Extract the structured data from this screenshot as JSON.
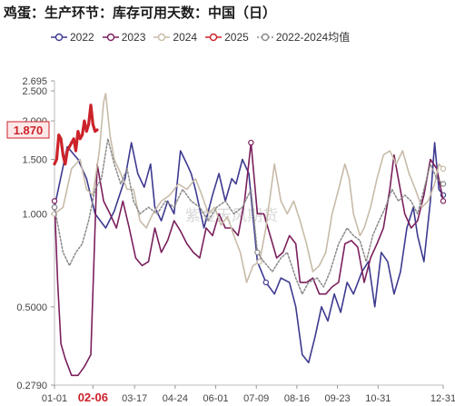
{
  "chart_data": {
    "type": "line",
    "title": "鸡蛋：生产环节：库存可用天数：中国（日）",
    "watermark": "紫金天风期货",
    "y_scale": "log",
    "ylim": [
      0.279,
      2.695
    ],
    "y_ticks": [
      "2.695",
      "2.500",
      "2.000",
      "1.500",
      "1.000",
      "0.5000",
      "0.2790"
    ],
    "x_ticks": [
      "01-01",
      "02-06",
      "03-17",
      "04-24",
      "06-01",
      "07-09",
      "08-16",
      "09-23",
      "10-31",
      "12-31"
    ],
    "x_tick_days": [
      0,
      36,
      75,
      113,
      151,
      189,
      227,
      265,
      303,
      364
    ],
    "highlight_x_tick": "02-06",
    "latest_value_label": "1.870",
    "series": [
      {
        "name": "2022",
        "color": "#3d3a8f",
        "width": 1.6,
        "points": [
          [
            0,
            1.05
          ],
          [
            12,
            1.65
          ],
          [
            22,
            1.5
          ],
          [
            30,
            1.3
          ],
          [
            38,
            1.0
          ],
          [
            48,
            0.9
          ],
          [
            56,
            1.02
          ],
          [
            66,
            1.3
          ],
          [
            72,
            1.7
          ],
          [
            78,
            1.35
          ],
          [
            84,
            1.22
          ],
          [
            90,
            1.45
          ],
          [
            94,
            1.05
          ],
          [
            100,
            0.95
          ],
          [
            106,
            1.1
          ],
          [
            112,
            1.0
          ],
          [
            118,
            1.6
          ],
          [
            124,
            1.45
          ],
          [
            128,
            1.35
          ],
          [
            132,
            1.2
          ],
          [
            140,
            0.9
          ],
          [
            148,
            1.15
          ],
          [
            154,
            1.35
          ],
          [
            160,
            1.1
          ],
          [
            166,
            1.3
          ],
          [
            170,
            1.25
          ],
          [
            176,
            1.5
          ],
          [
            182,
            1.35
          ],
          [
            190,
            0.7
          ],
          [
            198,
            0.6
          ],
          [
            206,
            0.55
          ],
          [
            212,
            0.62
          ],
          [
            220,
            0.6
          ],
          [
            226,
            0.5
          ],
          [
            232,
            0.35
          ],
          [
            238,
            0.33
          ],
          [
            244,
            0.4
          ],
          [
            250,
            0.5
          ],
          [
            256,
            0.45
          ],
          [
            262,
            0.55
          ],
          [
            268,
            0.48
          ],
          [
            274,
            0.6
          ],
          [
            280,
            0.55
          ],
          [
            288,
            0.65
          ],
          [
            294,
            0.7
          ],
          [
            300,
            0.5
          ],
          [
            306,
            0.75
          ],
          [
            312,
            0.7
          ],
          [
            318,
            0.55
          ],
          [
            324,
            0.65
          ],
          [
            330,
            0.9
          ],
          [
            336,
            1.05
          ],
          [
            340,
            0.85
          ],
          [
            346,
            0.7
          ],
          [
            352,
            1.1
          ],
          [
            356,
            1.7
          ],
          [
            360,
            1.2
          ],
          [
            364,
            1.15
          ]
        ]
      },
      {
        "name": "2023",
        "color": "#7a1f5c",
        "width": 1.6,
        "points": [
          [
            0,
            1.1
          ],
          [
            3,
            0.6
          ],
          [
            6,
            0.38
          ],
          [
            10,
            0.34
          ],
          [
            16,
            0.3
          ],
          [
            22,
            0.3
          ],
          [
            28,
            0.32
          ],
          [
            34,
            0.35
          ],
          [
            40,
            1.45
          ],
          [
            46,
            1.1
          ],
          [
            52,
            1.0
          ],
          [
            58,
            0.9
          ],
          [
            64,
            1.1
          ],
          [
            70,
            0.9
          ],
          [
            76,
            0.72
          ],
          [
            82,
            0.68
          ],
          [
            88,
            0.7
          ],
          [
            94,
            0.9
          ],
          [
            100,
            0.75
          ],
          [
            106,
            0.82
          ],
          [
            112,
            0.95
          ],
          [
            118,
            0.88
          ],
          [
            124,
            0.8
          ],
          [
            130,
            0.75
          ],
          [
            136,
            0.72
          ],
          [
            142,
            0.9
          ],
          [
            148,
            0.85
          ],
          [
            154,
            1.0
          ],
          [
            160,
            0.9
          ],
          [
            166,
            0.9
          ],
          [
            172,
            0.85
          ],
          [
            178,
            1.1
          ],
          [
            184,
            1.7
          ],
          [
            190,
            1.0
          ],
          [
            196,
            1.0
          ],
          [
            202,
            0.85
          ],
          [
            208,
            0.72
          ],
          [
            214,
            0.75
          ],
          [
            220,
            0.85
          ],
          [
            226,
            0.8
          ],
          [
            230,
            0.6
          ],
          [
            236,
            0.6
          ],
          [
            242,
            0.62
          ],
          [
            248,
            0.55
          ],
          [
            254,
            0.55
          ],
          [
            260,
            0.58
          ],
          [
            266,
            0.6
          ],
          [
            272,
            0.8
          ],
          [
            278,
            0.82
          ],
          [
            284,
            0.78
          ],
          [
            290,
            0.6
          ],
          [
            296,
            0.72
          ],
          [
            302,
            0.8
          ],
          [
            308,
            0.9
          ],
          [
            314,
            1.2
          ],
          [
            318,
            1.55
          ],
          [
            322,
            1.3
          ],
          [
            328,
            1.0
          ],
          [
            334,
            0.9
          ],
          [
            340,
            0.95
          ],
          [
            346,
            1.15
          ],
          [
            352,
            1.5
          ],
          [
            358,
            1.4
          ],
          [
            362,
            1.2
          ],
          [
            364,
            1.1
          ]
        ]
      },
      {
        "name": "2024",
        "color": "#c8bba8",
        "width": 1.6,
        "points": [
          [
            0,
            1.0
          ],
          [
            8,
            1.05
          ],
          [
            16,
            1.4
          ],
          [
            24,
            1.5
          ],
          [
            30,
            1.2
          ],
          [
            36,
            1.15
          ],
          [
            42,
            1.6
          ],
          [
            46,
            2.3
          ],
          [
            48,
            2.45
          ],
          [
            52,
            1.8
          ],
          [
            56,
            1.5
          ],
          [
            62,
            1.35
          ],
          [
            68,
            1.2
          ],
          [
            74,
            1.2
          ],
          [
            80,
            0.95
          ],
          [
            86,
            0.9
          ],
          [
            92,
            1.0
          ],
          [
            100,
            1.1
          ],
          [
            108,
            1.15
          ],
          [
            116,
            1.25
          ],
          [
            124,
            1.2
          ],
          [
            132,
            1.3
          ],
          [
            138,
            1.15
          ],
          [
            144,
            1.0
          ],
          [
            150,
            1.05
          ],
          [
            156,
            0.92
          ],
          [
            162,
            0.98
          ],
          [
            168,
            0.85
          ],
          [
            174,
            0.75
          ],
          [
            180,
            0.6
          ],
          [
            186,
            0.68
          ],
          [
            192,
            0.7
          ],
          [
            198,
            0.9
          ],
          [
            206,
            1.45
          ],
          [
            212,
            1.1
          ],
          [
            218,
            1.0
          ],
          [
            224,
            1.1
          ],
          [
            230,
            0.95
          ],
          [
            236,
            0.8
          ],
          [
            242,
            0.65
          ],
          [
            248,
            0.68
          ],
          [
            254,
            0.75
          ],
          [
            260,
            1.0
          ],
          [
            266,
            1.2
          ],
          [
            272,
            1.45
          ],
          [
            276,
            1.3
          ],
          [
            280,
            1.0
          ],
          [
            286,
            0.85
          ],
          [
            290,
            0.9
          ],
          [
            296,
            1.05
          ],
          [
            302,
            1.3
          ],
          [
            308,
            1.55
          ],
          [
            314,
            1.6
          ],
          [
            320,
            1.45
          ],
          [
            326,
            1.6
          ],
          [
            332,
            1.35
          ],
          [
            338,
            1.2
          ],
          [
            344,
            1.05
          ],
          [
            350,
            1.1
          ],
          [
            356,
            1.25
          ],
          [
            360,
            1.45
          ],
          [
            364,
            1.4
          ]
        ]
      },
      {
        "name": "2025",
        "color": "#cc2229",
        "width": 3.2,
        "points": [
          [
            0,
            1.45
          ],
          [
            2,
            1.5
          ],
          [
            4,
            1.8
          ],
          [
            6,
            1.75
          ],
          [
            8,
            1.55
          ],
          [
            10,
            1.45
          ],
          [
            12,
            1.6
          ],
          [
            14,
            1.65
          ],
          [
            16,
            1.7
          ],
          [
            18,
            1.75
          ],
          [
            20,
            1.6
          ],
          [
            22,
            1.85
          ],
          [
            24,
            1.75
          ],
          [
            26,
            1.8
          ],
          [
            28,
            2.0
          ],
          [
            30,
            1.85
          ],
          [
            32,
            1.95
          ],
          [
            34,
            2.25
          ],
          [
            36,
            1.95
          ],
          [
            38,
            1.85
          ],
          [
            40,
            1.87
          ]
        ]
      },
      {
        "name": "2022-2024均值",
        "color": "#8a8a8a",
        "width": 1.5,
        "dash": "2,2",
        "points": [
          [
            0,
            1.05
          ],
          [
            8,
            0.75
          ],
          [
            14,
            0.68
          ],
          [
            20,
            0.75
          ],
          [
            26,
            0.8
          ],
          [
            32,
            0.95
          ],
          [
            38,
            1.2
          ],
          [
            44,
            1.3
          ],
          [
            50,
            1.75
          ],
          [
            56,
            1.45
          ],
          [
            62,
            1.25
          ],
          [
            68,
            1.4
          ],
          [
            74,
            1.1
          ],
          [
            80,
            1.0
          ],
          [
            88,
            1.05
          ],
          [
            96,
            1.0
          ],
          [
            104,
            1.1
          ],
          [
            112,
            1.05
          ],
          [
            120,
            1.2
          ],
          [
            128,
            1.1
          ],
          [
            136,
            1.05
          ],
          [
            144,
            0.95
          ],
          [
            152,
            1.05
          ],
          [
            160,
            1.1
          ],
          [
            168,
            1.0
          ],
          [
            176,
            1.05
          ],
          [
            184,
            1.2
          ],
          [
            190,
            0.75
          ],
          [
            196,
            0.7
          ],
          [
            204,
            0.65
          ],
          [
            212,
            0.72
          ],
          [
            218,
            0.75
          ],
          [
            226,
            0.62
          ],
          [
            232,
            0.55
          ],
          [
            238,
            0.6
          ],
          [
            246,
            0.62
          ],
          [
            252,
            0.58
          ],
          [
            258,
            0.65
          ],
          [
            266,
            0.8
          ],
          [
            274,
            0.9
          ],
          [
            280,
            0.85
          ],
          [
            286,
            0.82
          ],
          [
            292,
            0.7
          ],
          [
            298,
            0.85
          ],
          [
            304,
            0.95
          ],
          [
            310,
            1.05
          ],
          [
            316,
            1.2
          ],
          [
            322,
            1.1
          ],
          [
            328,
            1.15
          ],
          [
            334,
            1.1
          ],
          [
            340,
            1.0
          ],
          [
            346,
            1.2
          ],
          [
            352,
            1.45
          ],
          [
            358,
            1.3
          ],
          [
            364,
            1.25
          ]
        ]
      }
    ]
  }
}
